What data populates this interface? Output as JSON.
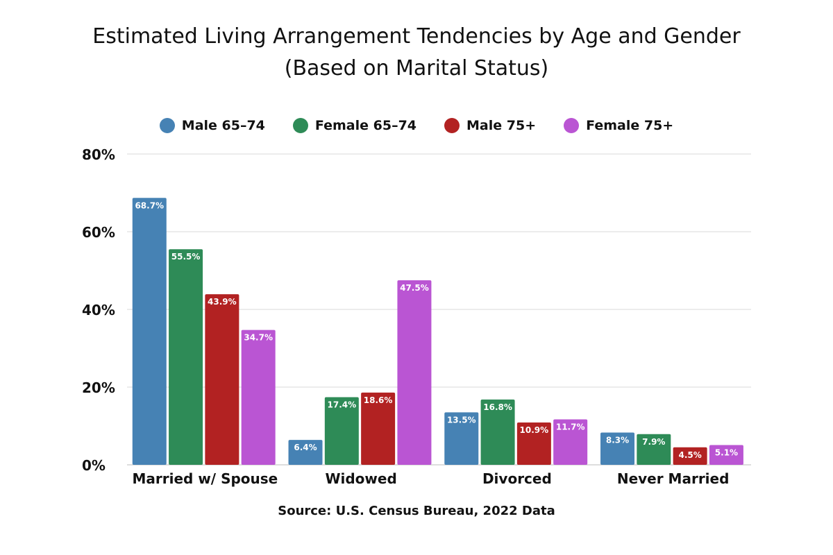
{
  "chart_data": {
    "type": "bar",
    "title": "Estimated Living Arrangement Tendencies by Age and Gender",
    "subtitle": "(Based on Marital Status)",
    "categories": [
      "Married w/ Spouse",
      "Widowed",
      "Divorced",
      "Never Married"
    ],
    "series": [
      {
        "name": "Male 65–74",
        "color": "#4682B4",
        "values": [
          68.7,
          6.4,
          13.5,
          8.3
        ]
      },
      {
        "name": "Female 65–74",
        "color": "#2E8B57",
        "values": [
          55.5,
          17.4,
          16.8,
          7.9
        ]
      },
      {
        "name": "Male 75+",
        "color": "#B22222",
        "values": [
          43.9,
          18.6,
          10.9,
          4.5
        ]
      },
      {
        "name": "Female 75+",
        "color": "#BA55D3",
        "values": [
          34.7,
          47.5,
          11.7,
          5.1
        ]
      }
    ],
    "y_ticks": [
      "0%",
      "20%",
      "40%",
      "60%",
      "80%"
    ],
    "ylim": [
      0,
      80
    ],
    "grid": true,
    "legend_position": "top-center",
    "source": "Source: U.S. Census Bureau, 2022 Data"
  }
}
